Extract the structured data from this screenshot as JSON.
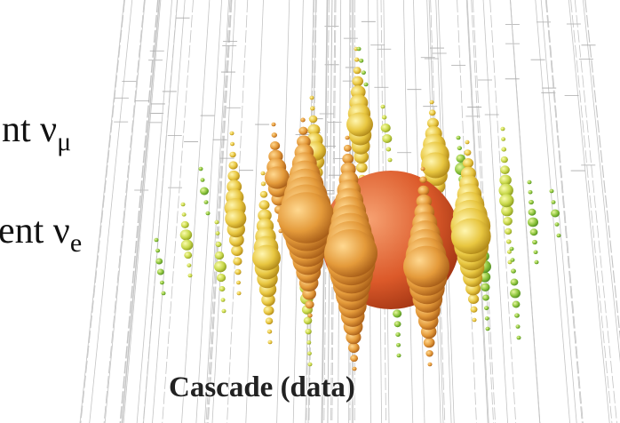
{
  "left_text": [
    {
      "text": "nt ν",
      "sub": "μ"
    },
    {
      "text": "ent ν",
      "sub": "e"
    }
  ],
  "caption": "Cascade (data)"
}
